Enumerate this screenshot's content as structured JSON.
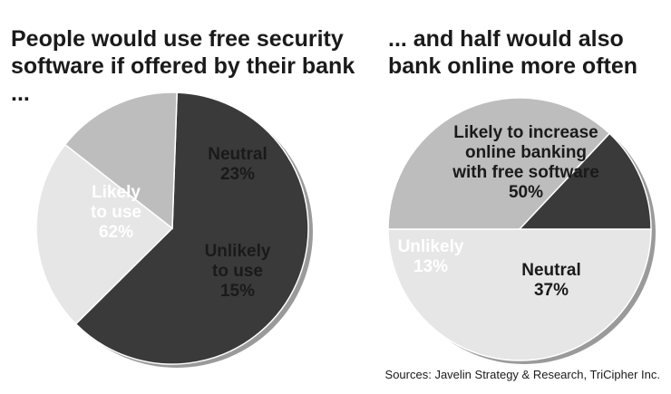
{
  "chart_data": [
    {
      "type": "pie",
      "title": "People would use free security software if offered by their bank ...",
      "slices": [
        {
          "name": "Likely to use",
          "value": 62,
          "label_lines": [
            "Likely",
            "to use",
            "62%"
          ],
          "color": "#3a3a3a",
          "text_color": "#ffffff"
        },
        {
          "name": "Neutral",
          "value": 23,
          "label_lines": [
            "Neutral",
            "23%"
          ],
          "color": "#e6e6e6",
          "text_color": "#1a1a1a"
        },
        {
          "name": "Unlikely to use",
          "value": 15,
          "label_lines": [
            "Unlikely",
            "to use",
            "15%"
          ],
          "color": "#bdbdbd",
          "text_color": "#1a1a1a"
        }
      ]
    },
    {
      "type": "pie",
      "title": "... and half would also bank online more often",
      "slices": [
        {
          "name": "Likely to increase online banking with free software",
          "value": 50,
          "label_lines": [
            "Likely to increase",
            "online banking",
            "with free software",
            "50%"
          ],
          "color": "#e6e6e6",
          "text_color": "#1a1a1a"
        },
        {
          "name": "Neutral",
          "value": 37,
          "label_lines": [
            "Neutral",
            "37%"
          ],
          "color": "#bdbdbd",
          "text_color": "#1a1a1a"
        },
        {
          "name": "Unlikely",
          "value": 13,
          "label_lines": [
            "Unlikely",
            "13%"
          ],
          "color": "#3a3a3a",
          "text_color": "#ffffff"
        }
      ]
    }
  ],
  "source": "Sources: Javelin Strategy & Research, TriCipher Inc."
}
